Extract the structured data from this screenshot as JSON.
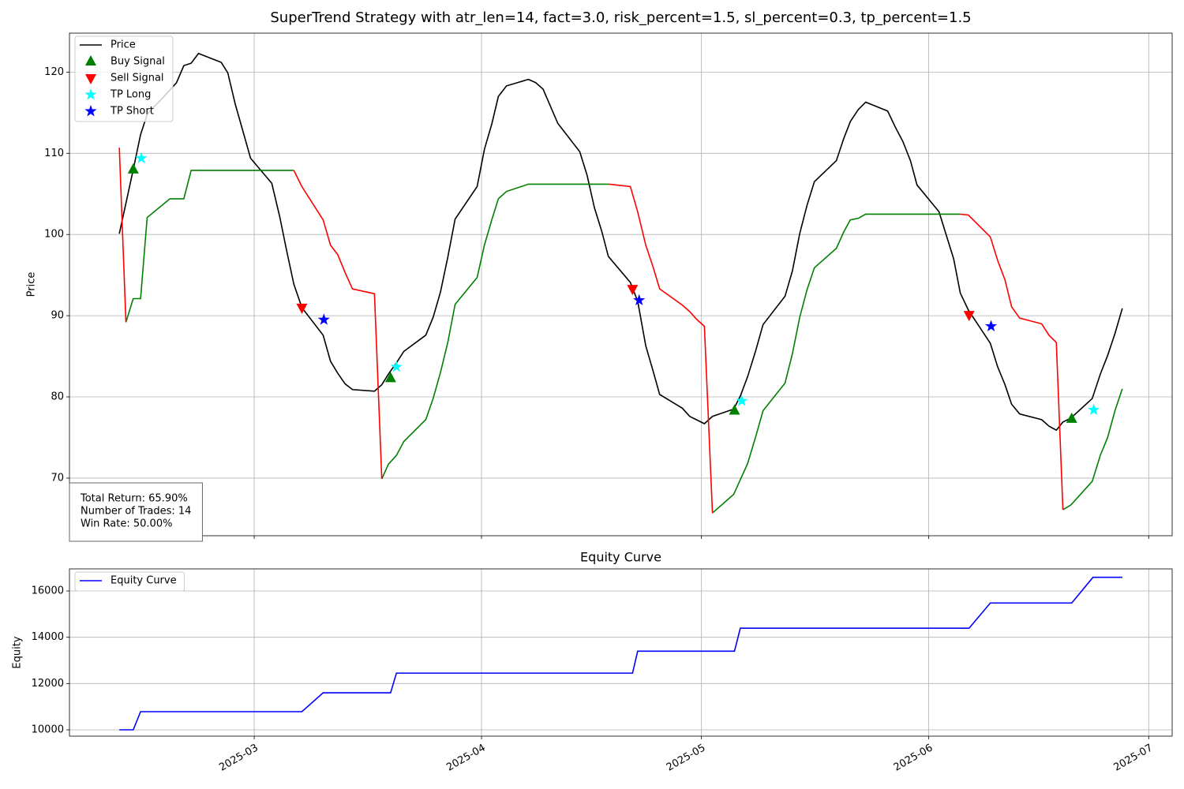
{
  "chart_data": [
    {
      "type": "line",
      "title": "SuperTrend Strategy with atr_len=14, fact=3.0, risk_percent=1.5, sl_percent=0.3, tp_percent=1.5",
      "y_label": "Price",
      "xlim": [
        -25.2,
        125.2
      ],
      "ylim": [
        62.9,
        124.8
      ],
      "yticks": [
        70,
        80,
        90,
        100,
        110,
        120
      ],
      "grid": true,
      "legend": "upper left",
      "stats_box": [
        "Total Return: 65.90%",
        "Number of Trades: 14",
        "Win Rate: 50.00%"
      ],
      "series": [
        {
          "name": "Price",
          "type": "line",
          "color": "#000000",
          "x": [
            -18.4,
            -16.5,
            -15.5,
            -14.6,
            -13.6,
            -12.5,
            -11.5,
            -10.6,
            -9.6,
            -8.6,
            -7.6,
            -4.5,
            -3.6,
            -2.6,
            -0.5,
            2.4,
            3.5,
            4.4,
            5.4,
            6.5,
            9.4,
            10.4,
            11.4,
            12.4,
            13.4,
            16.4,
            17.4,
            18.3,
            19.4,
            20.4,
            23.4,
            24.4,
            25.4,
            26.4,
            27.4,
            30.4,
            31.4,
            32.4,
            33.3,
            34.4,
            37.4,
            38.4,
            39.4,
            41.4,
            44.4,
            45.4,
            46.4,
            47.4,
            48.3,
            51.3,
            52.3,
            53.4,
            54.4,
            55.3,
            58.4,
            59.4,
            61.4,
            62.5,
            65.4,
            66.3,
            67.3,
            68.4,
            69.4,
            72.4,
            73.4,
            74.4,
            75.4,
            76.4,
            79.4,
            80.4,
            81.3,
            82.4,
            83.4,
            86.4,
            87.4,
            88.5,
            89.5,
            90.4,
            93.4,
            94.4,
            95.4,
            96.3,
            97.4,
            100.4,
            101.4,
            102.4,
            103.3,
            104.4,
            107.4,
            108.4,
            109.4,
            110.3,
            111.4,
            114.3,
            115.4,
            116.4,
            117.4,
            118.4
          ],
          "values": [
            100.1,
            108.0,
            112.3,
            114.8,
            115.8,
            116.8,
            117.8,
            118.7,
            120.8,
            121.1,
            122.3,
            121.2,
            119.9,
            116.1,
            109.4,
            106.3,
            102.1,
            98.1,
            93.9,
            91.0,
            87.6,
            84.4,
            82.9,
            81.6,
            80.9,
            80.7,
            81.5,
            82.8,
            84.2,
            85.6,
            87.6,
            89.8,
            92.9,
            97.2,
            101.9,
            105.9,
            110.5,
            113.6,
            117.0,
            118.3,
            119.1,
            118.7,
            117.9,
            113.7,
            110.2,
            107.3,
            103.3,
            100.4,
            97.3,
            94.1,
            91.8,
            86.3,
            83.2,
            80.3,
            78.6,
            77.6,
            76.7,
            77.6,
            78.5,
            80.1,
            82.5,
            85.7,
            88.9,
            92.4,
            95.5,
            100.1,
            103.6,
            106.5,
            109.1,
            111.8,
            113.9,
            115.4,
            116.3,
            115.2,
            113.3,
            111.4,
            109.1,
            106.1,
            102.8,
            99.9,
            97.0,
            92.8,
            90.7,
            86.6,
            83.7,
            81.5,
            79.1,
            77.9,
            77.2,
            76.4,
            75.9,
            76.9,
            77.4,
            79.8,
            82.8,
            85.1,
            87.8,
            90.9
          ]
        },
        {
          "type": "line",
          "color": "#008000",
          "x": [
            -17.5,
            -16.5,
            -15.5,
            -14.6,
            -11.5,
            -9.6,
            -8.6,
            5.4,
            11.4,
            17.4,
            18.3,
            19.4,
            20.4,
            23.4,
            24.4,
            25.4,
            26.4,
            27.4,
            30.4,
            31.4,
            32.4,
            33.3,
            34.4,
            37.4,
            48.4,
            55.3,
            62.5,
            65.4,
            67.3,
            68.4,
            69.4,
            72.4,
            73.4,
            74.4,
            75.4,
            76.4,
            79.4,
            80.4,
            81.3,
            82.4,
            83.4,
            96.3,
            103.3,
            110.3,
            111.4,
            114.3,
            115.4,
            116.4,
            117.4,
            118.4
          ],
          "values": [
            89.2,
            92.1,
            92.1,
            102.1,
            104.4,
            104.4,
            107.9,
            107.9,
            null,
            69.9,
            71.7,
            72.8,
            74.5,
            77.2,
            79.8,
            83.0,
            86.7,
            91.4,
            94.7,
            98.7,
            101.8,
            104.4,
            105.3,
            106.2,
            106.2,
            null,
            65.7,
            68.0,
            71.8,
            75.1,
            78.3,
            81.7,
            85.3,
            89.8,
            93.2,
            95.9,
            98.3,
            100.3,
            101.8,
            102.0,
            102.5,
            102.5,
            null,
            66.1,
            66.7,
            69.6,
            72.8,
            75.0,
            78.3,
            81.0
          ]
        },
        {
          "type": "line",
          "color": "#ff0000",
          "x": [
            -18.4,
            -17.5,
            -1,
            5.4,
            6.5,
            9.4,
            10.4,
            11.4,
            12.4,
            13.4,
            16.4,
            17.4,
            33.3,
            48.4,
            51.3,
            52.3,
            53.4,
            54.4,
            55.3,
            58.4,
            59.4,
            60.4,
            61.4,
            62.5,
            83.4,
            96.3,
            97.4,
            100.4,
            101.4,
            102.4,
            103.3,
            104.4,
            107.4,
            108.4,
            109.4,
            110.3
          ],
          "values": [
            110.7,
            89.2,
            null,
            107.9,
            105.9,
            101.8,
            98.7,
            97.5,
            95.3,
            93.3,
            92.7,
            69.9,
            null,
            106.2,
            105.9,
            102.8,
            98.7,
            96.0,
            93.3,
            91.3,
            90.5,
            89.5,
            88.7,
            65.7,
            null,
            102.5,
            102.4,
            99.7,
            96.8,
            94.4,
            91.1,
            89.7,
            89.0,
            87.6,
            86.7,
            66.1
          ]
        },
        {
          "name": "Buy Signal",
          "type": "scatter",
          "marker": "triangle-up",
          "color": "#008000",
          "x": [
            -16.5,
            18.6,
            65.5,
            111.5
          ],
          "values": [
            108.0,
            82.3,
            78.3,
            77.3
          ]
        },
        {
          "name": "Sell Signal",
          "type": "scatter",
          "marker": "triangle-down",
          "color": "#ff0000",
          "x": [
            6.5,
            51.6,
            97.5
          ],
          "values": [
            91.0,
            93.3,
            90.1
          ]
        },
        {
          "name": "TP Long",
          "type": "scatter",
          "marker": "star",
          "color": "#00ffff",
          "x": [
            -15.4,
            19.4,
            66.5,
            114.5
          ],
          "values": [
            109.4,
            83.7,
            79.5,
            78.4
          ]
        },
        {
          "name": "TP Short",
          "type": "scatter",
          "marker": "star",
          "color": "#0000ff",
          "x": [
            9.5,
            52.5,
            100.5
          ],
          "values": [
            89.5,
            91.9,
            88.7
          ]
        }
      ]
    },
    {
      "type": "line",
      "title": "Equity Curve",
      "y_label": "Equity",
      "xlim": [
        -25.2,
        125.2
      ],
      "ylim": [
        9727,
        16955
      ],
      "xticks": [
        {
          "value": 0,
          "label": "2025-03"
        },
        {
          "value": 31,
          "label": "2025-04"
        },
        {
          "value": 61,
          "label": "2025-05"
        },
        {
          "value": 92,
          "label": "2025-06"
        },
        {
          "value": 122,
          "label": "2025-07"
        }
      ],
      "yticks": [
        10000,
        12000,
        14000,
        16000
      ],
      "grid": true,
      "legend": "upper left",
      "series": [
        {
          "name": "Equity Curve",
          "type": "line",
          "color": "#0000ff",
          "x": [
            -18.4,
            -16.5,
            -15.5,
            6.5,
            9.4,
            18.6,
            19.4,
            51.6,
            52.3,
            65.5,
            66.3,
            97.5,
            100.4,
            111.5,
            114.4,
            118.4
          ],
          "values": [
            10000,
            10000,
            10784,
            10784,
            11600,
            11600,
            12450,
            12450,
            13400,
            13400,
            14390,
            14390,
            15480,
            15480,
            16590,
            16590
          ]
        }
      ]
    }
  ]
}
